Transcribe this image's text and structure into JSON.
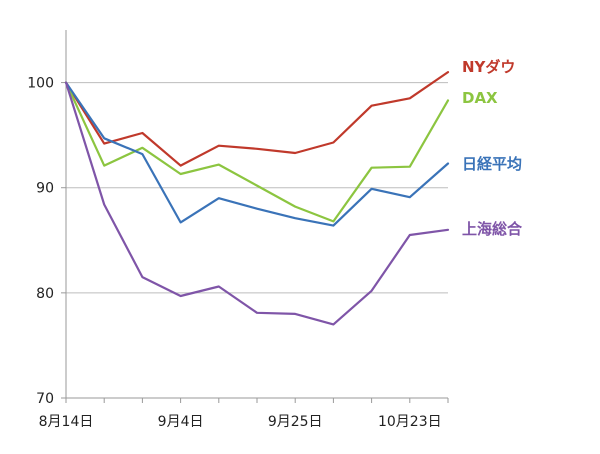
{
  "chart_data": {
    "type": "line",
    "title": "",
    "xlabel": "",
    "ylabel": "",
    "ylim": [
      70,
      105
    ],
    "yticks": [
      70,
      80,
      90,
      100
    ],
    "gridlines": "horizontal",
    "legend_placement": "right, inline labels next to line ends",
    "x_tick_labels": [
      {
        "index": 0,
        "label": "8月14日"
      },
      {
        "index": 3,
        "label": "9月4日"
      },
      {
        "index": 6,
        "label": "9月25日"
      },
      {
        "index": 9,
        "label": "10月23日"
      }
    ],
    "x_count": 11,
    "series": [
      {
        "name": "NYダウ",
        "color": "#c0392b",
        "values": [
          100,
          94.2,
          95.2,
          92.1,
          94.0,
          93.7,
          93.3,
          94.3,
          97.8,
          98.5,
          101.0
        ]
      },
      {
        "name": "DAX",
        "color": "#8cc540",
        "values": [
          100,
          92.1,
          93.8,
          91.3,
          92.2,
          90.2,
          88.2,
          86.8,
          91.9,
          92.0,
          98.3
        ]
      },
      {
        "name": "日経平均",
        "color": "#3a73b8",
        "values": [
          100,
          94.7,
          93.2,
          86.7,
          89.0,
          88.0,
          87.1,
          86.4,
          89.9,
          89.1,
          92.3
        ]
      },
      {
        "name": "上海総合",
        "color": "#7f55a8",
        "values": [
          100,
          88.4,
          81.5,
          79.7,
          80.6,
          78.1,
          78.0,
          77.0,
          80.2,
          85.5,
          86.0
        ]
      }
    ]
  }
}
